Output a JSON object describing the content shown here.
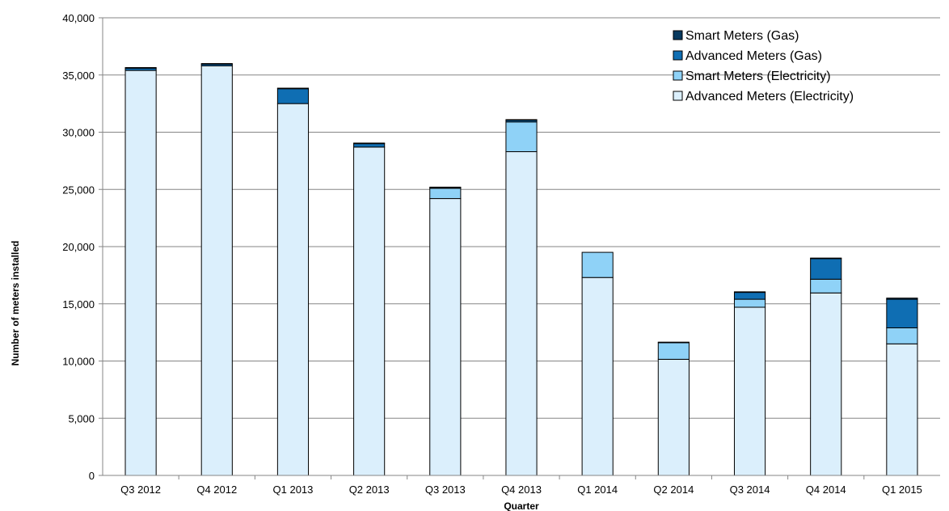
{
  "chart_data": {
    "type": "bar",
    "stacked": true,
    "title": "",
    "xlabel": "Quarter",
    "ylabel": "Number of meters installed",
    "ylim": [
      0,
      40000
    ],
    "y_ticks": [
      "0",
      "5,000",
      "10,000",
      "15,000",
      "20,000",
      "25,000",
      "30,000",
      "35,000",
      "40,000"
    ],
    "grid": true,
    "legend_position": "top-right",
    "categories": [
      "Q3 2012",
      "Q4 2012",
      "Q1 2013",
      "Q2 2013",
      "Q3 2013",
      "Q4 2013",
      "Q1 2014",
      "Q2 2014",
      "Q3 2014",
      "Q4 2014",
      "Q1 2015"
    ],
    "series": [
      {
        "name": "Advanced Meters (Electricity)",
        "color": "#dbeffc",
        "values": [
          35400,
          35800,
          32500,
          28700,
          24200,
          28300,
          17300,
          10150,
          14700,
          15950,
          11500
        ]
      },
      {
        "name": "Smart Meters (Electricity)",
        "color": "#8fd2f7",
        "values": [
          0,
          0,
          0,
          0,
          900,
          2600,
          2200,
          1450,
          700,
          1200,
          1400
        ]
      },
      {
        "name": "Advanced Meters (Gas)",
        "color": "#0f6eb3",
        "values": [
          200,
          150,
          1300,
          300,
          50,
          150,
          0,
          0,
          600,
          1800,
          2500
        ]
      },
      {
        "name": "Smart Meters (Gas)",
        "color": "#08395f",
        "values": [
          50,
          50,
          50,
          50,
          50,
          50,
          0,
          50,
          50,
          50,
          100
        ]
      }
    ]
  }
}
